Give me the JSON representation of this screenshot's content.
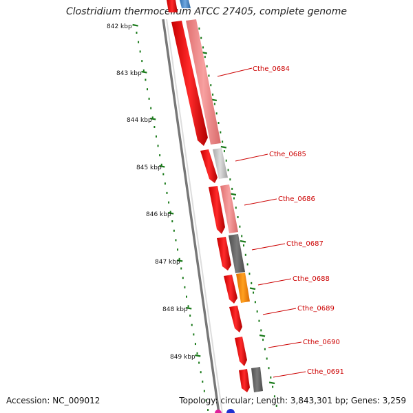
{
  "title": "Clostridium thermocellum ATCC 27405, complete genome",
  "accession_text": "Accession: NC_009012",
  "summary_text": "Topology: circular; Length: 3,843,301 bp; Genes: 3,259",
  "scale_labels": [
    "842 kbp",
    "843 kbp",
    "844 kbp",
    "845 kbp",
    "846 kbp",
    "847 kbp",
    "848 kbp",
    "849 kbp"
  ],
  "gene_labels": [
    "Cthe_0684",
    "Cthe_0685",
    "Cthe_0686",
    "Cthe_0687",
    "Cthe_0688",
    "Cthe_0689",
    "Cthe_0690",
    "Cthe_0691"
  ],
  "colors": {
    "cds": "#ff0000",
    "label": "#cc0000",
    "tick": "#1a7a1a",
    "backbone": "#777777",
    "pale_red": "#f08c8c",
    "light_gray": "#c8c8c8",
    "dark_gray": "#666666",
    "orange": "#ff8c00",
    "blue": "#4a86c8",
    "magenta": "#e0209a"
  }
}
